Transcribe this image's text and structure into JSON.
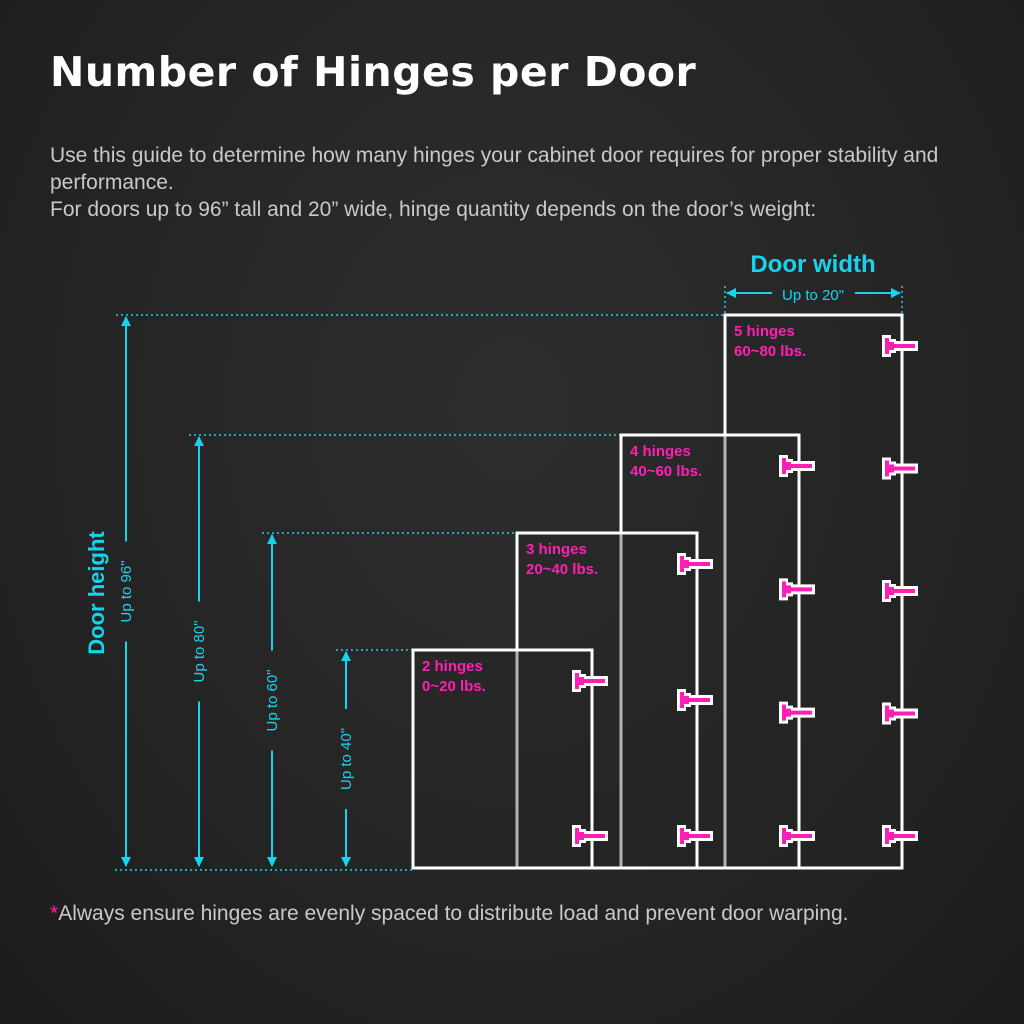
{
  "title": "Number of Hinges per Door",
  "intro": [
    "Use this guide to determine how many hinges your cabinet door requires for proper stability and performance.",
    "For doors up to 96” tall and 20” wide, hinge quantity depends on the door’s weight:"
  ],
  "width_label": "Door width",
  "width_value": "Up to 20\"",
  "height_label": "Door height",
  "heights": [
    "Up to 96\"",
    "Up to 80\"",
    "Up to 60\"",
    "Up to 40\""
  ],
  "doors": [
    {
      "hinges": "5 hinges",
      "weight": "60~80 lbs.",
      "count": 5
    },
    {
      "hinges": "4 hinges",
      "weight": "40~60 lbs.",
      "count": 4
    },
    {
      "hinges": "3 hinges",
      "weight": "20~40 lbs.",
      "count": 3
    },
    {
      "hinges": "2 hinges",
      "weight": "0~20 lbs.",
      "count": 2
    }
  ],
  "note_star": "*",
  "note": "Always ensure hinges are evenly spaced to distribute load and prevent door warping.",
  "colors": {
    "dimension": "#17d4ee",
    "hinge": "#ff1fb4",
    "door_outline": "#ffffff",
    "background": "#262626"
  }
}
